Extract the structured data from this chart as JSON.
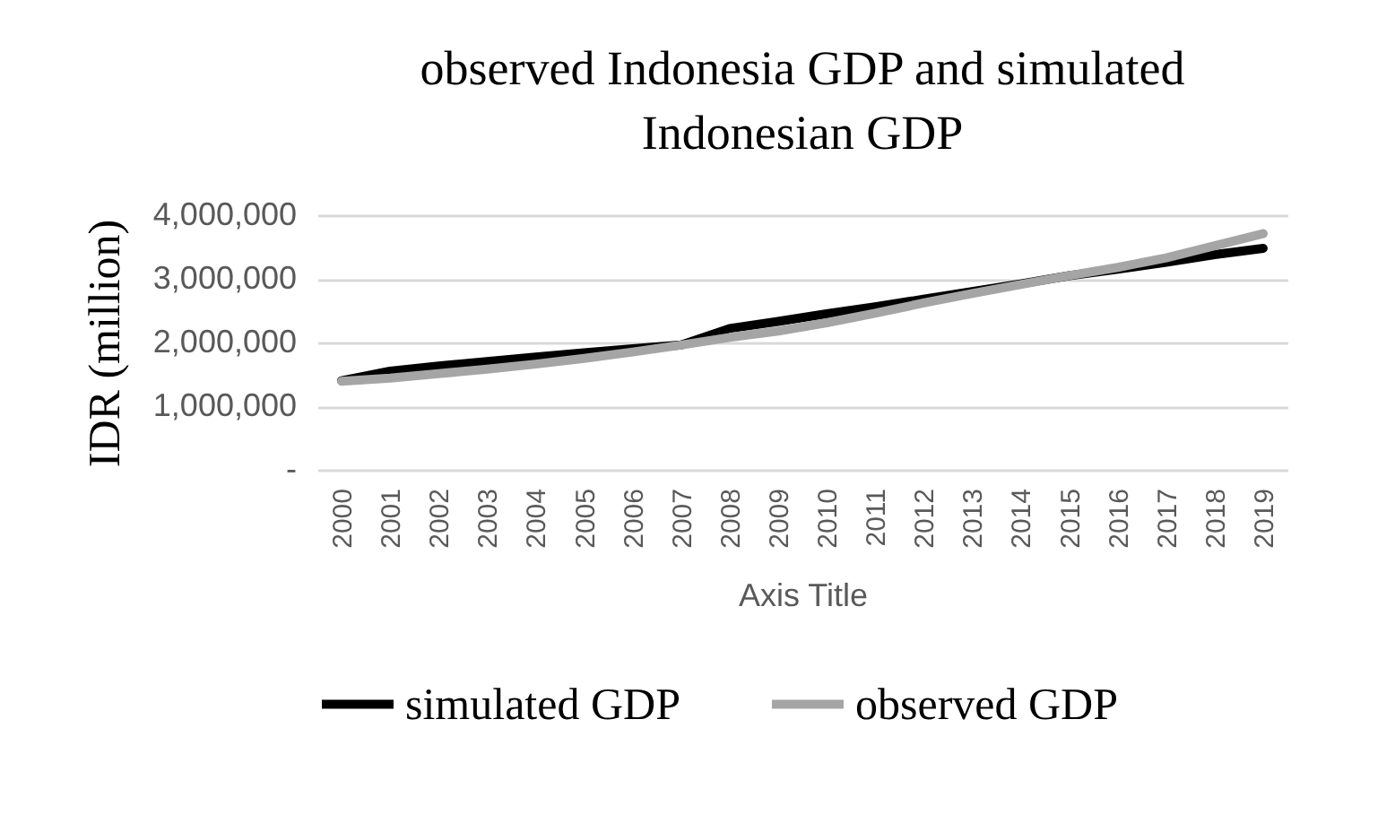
{
  "chart_data": {
    "type": "line",
    "title": "observed Indonesia GDP and simulated Indonesian GDP",
    "xlabel": "Axis Title",
    "ylabel": "IDR (million)",
    "categories": [
      "2000",
      "2001",
      "2002",
      "2003",
      "2004",
      "2005",
      "2006",
      "2007",
      "2008",
      "2009",
      "2010",
      "2011",
      "2012",
      "2013",
      "2014",
      "2015",
      "2016",
      "2017",
      "2018",
      "2019"
    ],
    "series": [
      {
        "name": "simulated GDP",
        "color": "#000000",
        "values": [
          1400000,
          1550000,
          1630000,
          1700000,
          1770000,
          1840000,
          1900000,
          1960000,
          2220000,
          2330000,
          2450000,
          2560000,
          2680000,
          2800000,
          2920000,
          3050000,
          3150000,
          3260000,
          3380000,
          3480000
        ]
      },
      {
        "name": "observed GDP",
        "color": "#a5a5a5",
        "values": [
          1390000,
          1440000,
          1510000,
          1580000,
          1660000,
          1750000,
          1850000,
          1960000,
          2080000,
          2180000,
          2310000,
          2460000,
          2620000,
          2770000,
          2910000,
          3050000,
          3180000,
          3330000,
          3520000,
          3710000
        ]
      }
    ],
    "ylim": [
      0,
      4000000
    ],
    "yticks": [
      {
        "value": 0,
        "label": "-"
      },
      {
        "value": 1000000,
        "label": "1,000,000"
      },
      {
        "value": 2000000,
        "label": "2,000,000"
      },
      {
        "value": 3000000,
        "label": "3,000,000"
      },
      {
        "value": 4000000,
        "label": "4,000,000"
      }
    ],
    "grid": "y",
    "legend": "bottom",
    "line_style": "solid",
    "marker": "none"
  }
}
